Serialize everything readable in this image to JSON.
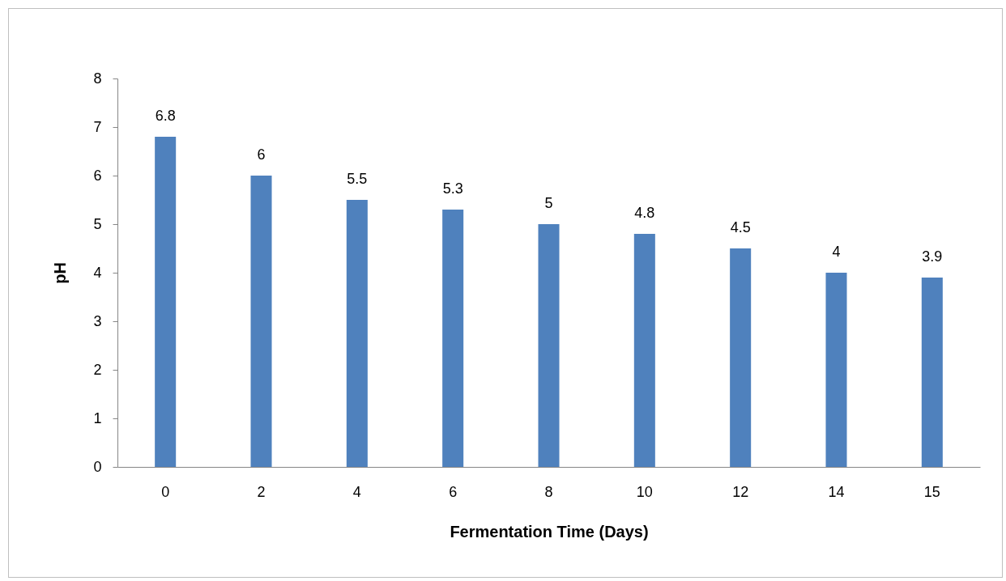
{
  "chart_data": {
    "type": "bar",
    "xlabel": "Fermentation Time (Days)",
    "ylabel": "pH",
    "categories": [
      "0",
      "2",
      "4",
      "6",
      "8",
      "10",
      "12",
      "14",
      "15"
    ],
    "values": [
      6.8,
      6,
      5.5,
      5.3,
      5,
      4.8,
      4.5,
      4,
      3.9
    ],
    "color": "#4f81bd",
    "ylim": [
      0,
      8
    ],
    "yticks": [
      0,
      1,
      2,
      3,
      4,
      5,
      6,
      7,
      8
    ],
    "grid": false,
    "data_labels": true
  }
}
